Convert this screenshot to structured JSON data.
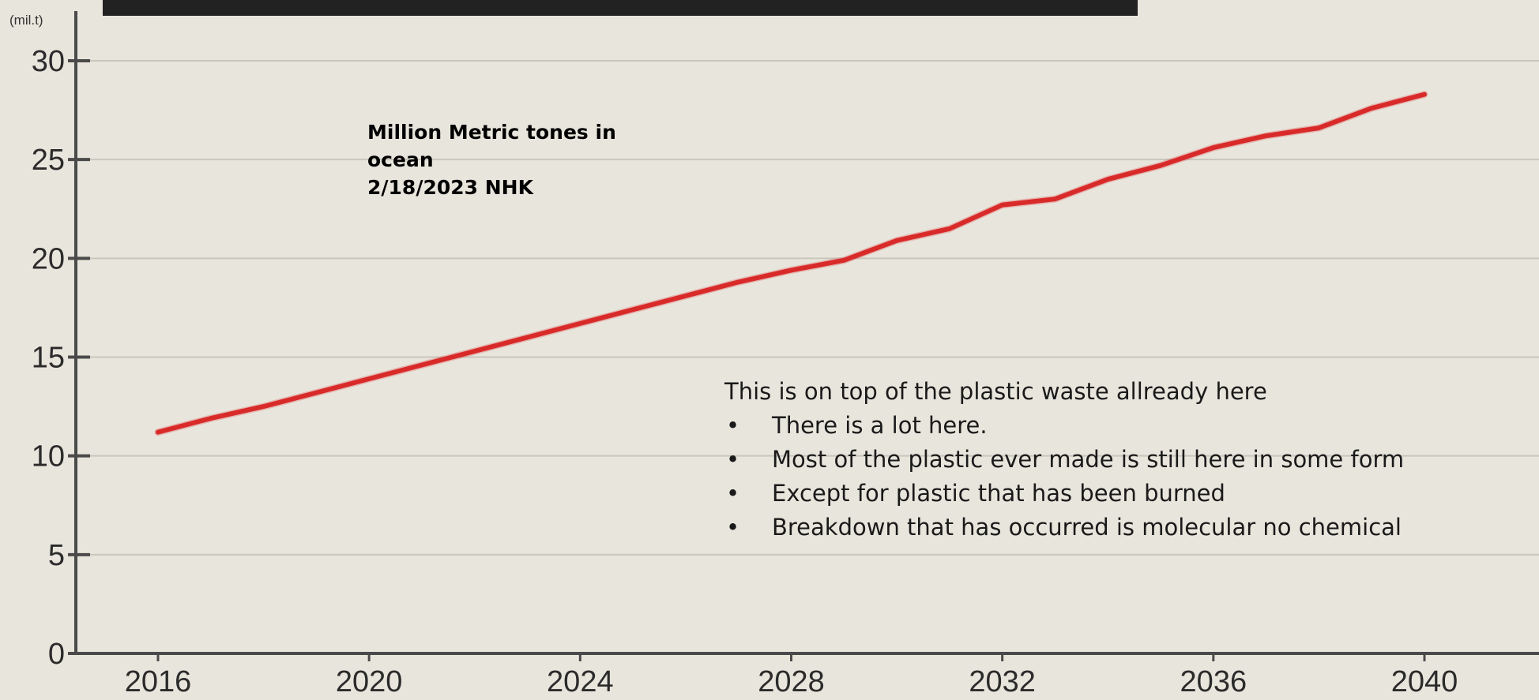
{
  "chart_data": {
    "type": "line",
    "unit_label": "(mil.t)",
    "x": [
      2016,
      2017,
      2018,
      2019,
      2020,
      2021,
      2022,
      2023,
      2024,
      2025,
      2026,
      2027,
      2028,
      2029,
      2030,
      2031,
      2032,
      2033,
      2034,
      2035,
      2036,
      2037,
      2038,
      2039,
      2040
    ],
    "series": [
      {
        "values": [
          11.2,
          11.9,
          12.5,
          13.2,
          13.9,
          14.6,
          15.3,
          16.0,
          16.7,
          17.4,
          18.1,
          18.8,
          19.4,
          19.9,
          20.9,
          21.5,
          22.7,
          23.0,
          24.0,
          24.7,
          25.6,
          26.2,
          26.6,
          27.6,
          28.3
        ],
        "color": "#d92a2a"
      }
    ],
    "x_ticks": [
      "2016",
      "2020",
      "2024",
      "2028",
      "2032",
      "2036",
      "2040"
    ],
    "y_ticks": [
      "0",
      "5",
      "10",
      "15",
      "20",
      "25",
      "30"
    ],
    "xlim": [
      2016,
      2040
    ],
    "ylim": [
      0,
      30
    ],
    "grid": true,
    "title": "",
    "xlabel": "",
    "ylabel": ""
  },
  "annotation_title": {
    "lines": [
      "Million Metric tones in",
      "ocean",
      "2/18/2023 NHK"
    ]
  },
  "notes": {
    "heading": "This is on top of the plastic waste  allready here",
    "bullet_char": "•",
    "items": [
      "There is a lot here.",
      "Most of the plastic ever made is still  here in some form",
      "Except for plastic that has been burned",
      "Breakdown that has occurred is molecular no chemical"
    ]
  },
  "colors": {
    "background": "#e8e5dc",
    "line": "#d92a2a",
    "axis": "#4a4a4a",
    "grid": "#c9c6bd"
  }
}
